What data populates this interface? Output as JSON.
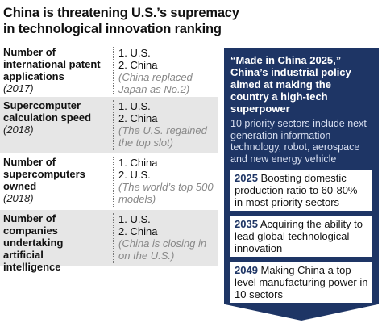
{
  "title": [
    "China is threatening U.S.’s supremacy",
    "in technological innovation ranking"
  ],
  "rows": [
    {
      "label": "Number of international patent applications",
      "year": "(2017)",
      "ranks": [
        "1. U.S.",
        "2. China"
      ],
      "note": "(China replaced Japan as No.2)"
    },
    {
      "label": "Supercomputer calculation speed",
      "year": "(2018)",
      "ranks": [
        "1. U.S.",
        "2. China"
      ],
      "note": "(The U.S. regained the top slot)"
    },
    {
      "label": "Number of supercomputers owned",
      "year": "(2018)",
      "ranks": [
        "1. China",
        "2. U.S."
      ],
      "note": "(The world’s top 500 models)"
    },
    {
      "label": "Number of companies undertaking artificial intelligence",
      "year": null,
      "ranks": [
        "1. U.S.",
        "2. China"
      ],
      "note": "(China is closing in on the U.S.)"
    }
  ],
  "panel": {
    "heading": "“Made in China 2025,” China’s industrial policy aimed at making the country a high-tech superpower",
    "body": "10 priority sectors include next-generation information technology, robot, aerospace and new energy vehicle",
    "goals": [
      {
        "year": "2025",
        "text": "Boosting domestic production ratio to 60-80% in most priority sectors"
      },
      {
        "year": "2035",
        "text": "Acquiring the ability to lead global technological innovation"
      },
      {
        "year": "2049",
        "text": "Making China a top-level manufacturing power in 10 sectors"
      }
    ]
  }
}
